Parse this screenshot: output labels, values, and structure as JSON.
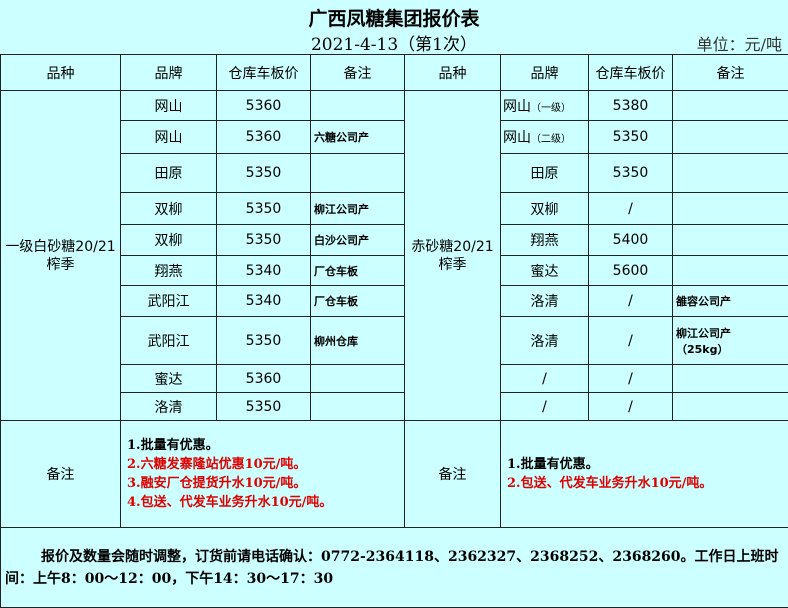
{
  "header": {
    "title": "广西凤糖集团报价表",
    "date": "2021-4-13（第1次）",
    "unit": "单位：元/吨"
  },
  "columns": [
    "品种",
    "品牌",
    "仓库车板价",
    "备注",
    "品种",
    "品牌",
    "仓库车板价",
    "备注"
  ],
  "left": {
    "category": "一级白砂糖20/21榨季",
    "rows": [
      {
        "brand": "网山",
        "price": "5360",
        "note": ""
      },
      {
        "brand": "网山",
        "price": "5360",
        "note": "六糖公司产"
      },
      {
        "brand": "田原",
        "price": "5350",
        "note": ""
      },
      {
        "brand": "双柳",
        "price": "5350",
        "note": "柳江公司产"
      },
      {
        "brand": "双柳",
        "price": "5350",
        "note": "白沙公司产"
      },
      {
        "brand": "翔燕",
        "price": "5340",
        "note": "厂仓车板"
      },
      {
        "brand": "武阳江",
        "price": "5340",
        "note": "厂仓车板"
      },
      {
        "brand": "武阳江",
        "price": "5350",
        "note": "柳州仓库"
      },
      {
        "brand": "蜜达",
        "price": "5360",
        "note": ""
      },
      {
        "brand": "洛清",
        "price": "5350",
        "note": ""
      }
    ]
  },
  "right": {
    "category": "赤砂糖20/21榨季",
    "rows": [
      {
        "brand": "网山",
        "brand_sub": "（一级）",
        "price": "5380",
        "note": ""
      },
      {
        "brand": "网山",
        "brand_sub": "（二级）",
        "price": "5350",
        "note": ""
      },
      {
        "brand": "田原",
        "price": "5350",
        "note": ""
      },
      {
        "brand": "双柳",
        "price": "/",
        "note": ""
      },
      {
        "brand": "翔燕",
        "price": "5400",
        "note": ""
      },
      {
        "brand": "蜜达",
        "price": "5600",
        "note": ""
      },
      {
        "brand": "洛清",
        "price": "/",
        "note": "雒容公司产"
      },
      {
        "brand": "洛清",
        "price": "/",
        "note": "柳江公司产",
        "note2": "（25kg）"
      },
      {
        "brand": "/",
        "price": "/",
        "note": ""
      },
      {
        "brand": "/",
        "price": "/",
        "note": ""
      }
    ]
  },
  "remarks": {
    "label": "备注",
    "left": [
      "1.批量有优惠。",
      "2.六糖发寨隆站优惠10元/吨。",
      "3.融安厂仓提货升水10元/吨。",
      "4.包送、代发车业务升水10元/吨。"
    ],
    "right": [
      "1.批量有优惠。",
      "2.包送、代发车业务升水10元/吨。"
    ]
  },
  "footer": "报价及数量会随时调整，订货前请电话确认：0772-2364118、2362327、2368252、2368260。工作日上班时间：上午8：00～12：00，下午14：30～17：30",
  "colors": {
    "background": "#ccffff",
    "highlight": "#e00000"
  }
}
